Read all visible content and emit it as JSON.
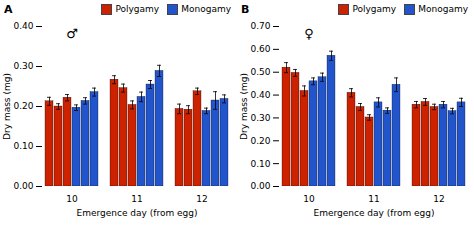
{
  "chart_data": [
    {
      "type": "bar",
      "title": "A",
      "annotation": "♂",
      "xlabel": "Emergence day (from egg)",
      "ylabel": "Dry mass (mg)",
      "categories": [
        "10",
        "11",
        "12"
      ],
      "series": [
        {
          "name": "Polygamy",
          "color": "#CC2200",
          "values": [
            [
              0.213,
              0.2,
              0.222
            ],
            [
              0.267,
              0.246,
              0.204
            ],
            [
              0.194,
              0.192,
              0.238
            ]
          ],
          "errors": [
            [
              0.01,
              0.007,
              0.008
            ],
            [
              0.01,
              0.01,
              0.01
            ],
            [
              0.012,
              0.01,
              0.008
            ]
          ]
        },
        {
          "name": "Monogamy",
          "color": "#2255CC",
          "values": [
            [
              0.197,
              0.214,
              0.236
            ],
            [
              0.224,
              0.255,
              0.289
            ],
            [
              0.189,
              0.215,
              0.219
            ]
          ],
          "errors": [
            [
              0.007,
              0.008,
              0.01
            ],
            [
              0.012,
              0.01,
              0.014
            ],
            [
              0.007,
              0.022,
              0.01
            ]
          ]
        }
      ],
      "ylim": [
        0,
        0.4
      ],
      "yticks": [
        0,
        0.1,
        0.2,
        0.3,
        0.4
      ],
      "grid": false,
      "legend": "upper right"
    },
    {
      "type": "bar",
      "title": "B",
      "annotation": "♀",
      "xlabel": "Emergence day (from egg)",
      "ylabel": "Dry mass (mg)",
      "categories": [
        "10",
        "11",
        "12"
      ],
      "series": [
        {
          "name": "Polygamy",
          "color": "#CC2200",
          "values": [
            [
              0.52,
              0.497,
              0.418
            ],
            [
              0.41,
              0.348,
              0.302
            ],
            [
              0.358,
              0.37,
              0.348
            ]
          ],
          "errors": [
            [
              0.022,
              0.015,
              0.022
            ],
            [
              0.018,
              0.015,
              0.012
            ],
            [
              0.014,
              0.015,
              0.012
            ]
          ]
        },
        {
          "name": "Monogamy",
          "color": "#2255CC",
          "values": [
            [
              0.46,
              0.478,
              0.572
            ],
            [
              0.368,
              0.332,
              0.445
            ],
            [
              0.358,
              0.33,
              0.368
            ]
          ],
          "errors": [
            [
              0.015,
              0.018,
              0.02
            ],
            [
              0.02,
              0.012,
              0.03
            ],
            [
              0.014,
              0.012,
              0.018
            ]
          ]
        }
      ],
      "ylim": [
        0,
        0.7
      ],
      "yticks": [
        0,
        0.1,
        0.2,
        0.3,
        0.4,
        0.5,
        0.6,
        0.7
      ],
      "grid": false,
      "legend": "upper right"
    }
  ]
}
